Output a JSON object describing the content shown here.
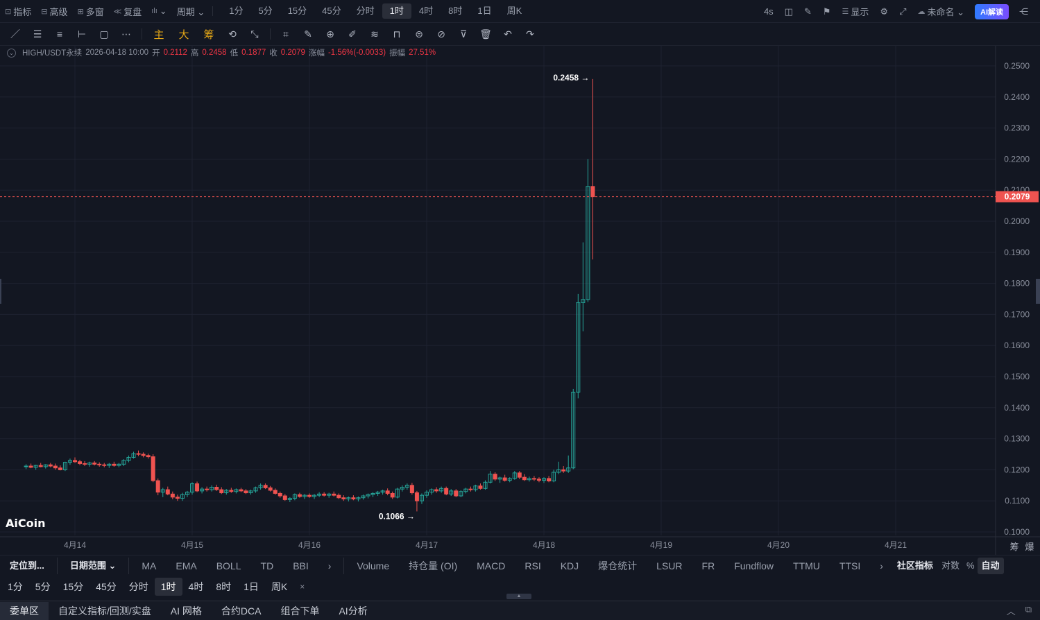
{
  "topbar": {
    "tools": [
      {
        "icon": "indicator-icon",
        "glyph": "⊡",
        "label": "指标"
      },
      {
        "icon": "advanced-icon",
        "glyph": "⊟",
        "label": "高级"
      },
      {
        "icon": "multi-window-icon",
        "glyph": "⊞",
        "label": "多窗"
      },
      {
        "icon": "replay-icon",
        "glyph": "≪",
        "label": "复盘"
      },
      {
        "icon": "chart-type-icon",
        "glyph": "ılı",
        "label": "⌄"
      },
      {
        "icon": "period-icon",
        "glyph": "",
        "label": "周期 ⌄"
      }
    ],
    "periods": [
      "1分",
      "5分",
      "15分",
      "45分",
      "分时",
      "1时",
      "4时",
      "8时",
      "1日",
      "周K"
    ],
    "active_period": "1时",
    "refresh": "4s",
    "display_label": "显示",
    "layout_name": "未命名 ⌄",
    "ai_label": "AI解读"
  },
  "drawbar": {
    "tools": [
      "／",
      "☰",
      "≡",
      "⊢",
      "▢",
      "⋯",
      "主",
      "大",
      "筹",
      "⟲",
      "⤡",
      "⌗",
      "✎",
      "⊕",
      "✐",
      "≋",
      "⊓",
      "⊜",
      "⊘",
      "⊽",
      "🗑",
      "↶",
      "↷"
    ]
  },
  "info": {
    "symbol": "HIGH/USDT永续",
    "datetime": "2026-04-18 10:00",
    "open_label": "开",
    "open": "0.2112",
    "high_label": "高",
    "high": "0.2458",
    "low_label": "低",
    "low": "0.1877",
    "close_label": "收",
    "close": "0.2079",
    "change_label": "涨幅",
    "change": "-1.56%(-0.0033)",
    "amp_label": "振幅",
    "amp": "27.51%"
  },
  "logo": "AiCoin",
  "chart_data": {
    "type": "candlestick",
    "symbol": "HIGH/USDT永续",
    "interval": "1时",
    "ylim": [
      0.1,
      0.25
    ],
    "y_ticks": [
      "0.2500",
      "0.2400",
      "0.2300",
      "0.2200",
      "0.2100",
      "0.2000",
      "0.1900",
      "0.1800",
      "0.1700",
      "0.1600",
      "0.1500",
      "0.1400",
      "0.1300",
      "0.1200",
      "0.1100",
      "0.1000"
    ],
    "x_ticks": [
      "4月14",
      "4月15",
      "4月16",
      "4月17",
      "4月18",
      "4月19",
      "4月20",
      "4月21"
    ],
    "last_price": "0.2079",
    "annotations": [
      {
        "label": "0.2458 →",
        "value": 0.2458
      },
      {
        "label": "0.1066 →",
        "value": 0.1066
      }
    ],
    "colors": {
      "up": "#26a69a",
      "down": "#ef5350",
      "bg": "#131722",
      "grid": "#1e2230",
      "last_line": "#ef5350"
    },
    "candles": [
      [
        0.121,
        0.1218,
        0.1202,
        0.1212
      ],
      [
        0.1212,
        0.122,
        0.1205,
        0.1208
      ],
      [
        0.1208,
        0.1216,
        0.12,
        0.1214
      ],
      [
        0.1214,
        0.1222,
        0.1208,
        0.121
      ],
      [
        0.121,
        0.1218,
        0.1204,
        0.1216
      ],
      [
        0.1216,
        0.1222,
        0.1208,
        0.1212
      ],
      [
        0.1212,
        0.122,
        0.12,
        0.1206
      ],
      [
        0.1206,
        0.1214,
        0.1198,
        0.12
      ],
      [
        0.12,
        0.1226,
        0.1196,
        0.1224
      ],
      [
        0.1224,
        0.1236,
        0.1216,
        0.123
      ],
      [
        0.123,
        0.124,
        0.1222,
        0.1226
      ],
      [
        0.1226,
        0.1232,
        0.1215,
        0.122
      ],
      [
        0.122,
        0.1228,
        0.1212,
        0.1218
      ],
      [
        0.1218,
        0.1226,
        0.121,
        0.1222
      ],
      [
        0.1222,
        0.1228,
        0.1214,
        0.1218
      ],
      [
        0.1218,
        0.1224,
        0.121,
        0.1216
      ],
      [
        0.1216,
        0.1222,
        0.1208,
        0.1214
      ],
      [
        0.1214,
        0.1222,
        0.1206,
        0.1218
      ],
      [
        0.1218,
        0.1226,
        0.121,
        0.1214
      ],
      [
        0.1214,
        0.1222,
        0.1208,
        0.1218
      ],
      [
        0.1218,
        0.1234,
        0.1212,
        0.123
      ],
      [
        0.123,
        0.1246,
        0.1224,
        0.124
      ],
      [
        0.124,
        0.1258,
        0.1236,
        0.1252
      ],
      [
        0.1252,
        0.1262,
        0.1244,
        0.125
      ],
      [
        0.125,
        0.1256,
        0.124,
        0.1246
      ],
      [
        0.1246,
        0.1252,
        0.1236,
        0.1242
      ],
      [
        0.1242,
        0.125,
        0.116,
        0.1165
      ],
      [
        0.1165,
        0.1172,
        0.1118,
        0.1128
      ],
      [
        0.1128,
        0.1142,
        0.1112,
        0.1136
      ],
      [
        0.1136,
        0.1146,
        0.1118,
        0.1122
      ],
      [
        0.1122,
        0.113,
        0.1105,
        0.1112
      ],
      [
        0.1112,
        0.112,
        0.11,
        0.1108
      ],
      [
        0.1108,
        0.1126,
        0.11,
        0.112
      ],
      [
        0.112,
        0.1132,
        0.1112,
        0.1128
      ],
      [
        0.1128,
        0.116,
        0.112,
        0.1155
      ],
      [
        0.1155,
        0.1162,
        0.1128,
        0.1132
      ],
      [
        0.1132,
        0.1144,
        0.1124,
        0.1138
      ],
      [
        0.1138,
        0.1146,
        0.113,
        0.1136
      ],
      [
        0.1136,
        0.115,
        0.113,
        0.1144
      ],
      [
        0.1144,
        0.1152,
        0.1132,
        0.1136
      ],
      [
        0.1136,
        0.1144,
        0.1122,
        0.1126
      ],
      [
        0.1126,
        0.1138,
        0.112,
        0.1134
      ],
      [
        0.1134,
        0.1142,
        0.1126,
        0.113
      ],
      [
        0.113,
        0.114,
        0.1124,
        0.1136
      ],
      [
        0.1136,
        0.1142,
        0.1128,
        0.1132
      ],
      [
        0.1132,
        0.1138,
        0.1122,
        0.1126
      ],
      [
        0.1126,
        0.1136,
        0.112,
        0.1132
      ],
      [
        0.1132,
        0.1146,
        0.1126,
        0.1142
      ],
      [
        0.1142,
        0.1156,
        0.1136,
        0.115
      ],
      [
        0.115,
        0.1156,
        0.1138,
        0.1142
      ],
      [
        0.1142,
        0.1148,
        0.113,
        0.1134
      ],
      [
        0.1134,
        0.114,
        0.112,
        0.1124
      ],
      [
        0.1124,
        0.113,
        0.111,
        0.1116
      ],
      [
        0.1116,
        0.1122,
        0.11,
        0.1104
      ],
      [
        0.1104,
        0.1112,
        0.1096,
        0.1108
      ],
      [
        0.1108,
        0.1124,
        0.1102,
        0.112
      ],
      [
        0.112,
        0.1126,
        0.111,
        0.1114
      ],
      [
        0.1114,
        0.1122,
        0.1106,
        0.1118
      ],
      [
        0.1118,
        0.1124,
        0.111,
        0.1114
      ],
      [
        0.1114,
        0.1122,
        0.1106,
        0.1118
      ],
      [
        0.1118,
        0.1128,
        0.1112,
        0.1122
      ],
      [
        0.1122,
        0.1128,
        0.1114,
        0.1118
      ],
      [
        0.1118,
        0.1126,
        0.111,
        0.1122
      ],
      [
        0.1122,
        0.113,
        0.1114,
        0.1118
      ],
      [
        0.1118,
        0.1124,
        0.1106,
        0.111
      ],
      [
        0.111,
        0.1118,
        0.11,
        0.1106
      ],
      [
        0.1106,
        0.1114,
        0.1098,
        0.111
      ],
      [
        0.111,
        0.1118,
        0.1102,
        0.1106
      ],
      [
        0.1106,
        0.1114,
        0.1098,
        0.111
      ],
      [
        0.111,
        0.112,
        0.1104,
        0.1116
      ],
      [
        0.1116,
        0.1124,
        0.1108,
        0.112
      ],
      [
        0.112,
        0.1128,
        0.1112,
        0.1124
      ],
      [
        0.1124,
        0.1132,
        0.1116,
        0.1128
      ],
      [
        0.1128,
        0.1136,
        0.112,
        0.1132
      ],
      [
        0.1132,
        0.114,
        0.1118,
        0.1124
      ],
      [
        0.1124,
        0.113,
        0.1106,
        0.1112
      ],
      [
        0.1112,
        0.1142,
        0.1108,
        0.1138
      ],
      [
        0.1138,
        0.115,
        0.113,
        0.1144
      ],
      [
        0.1144,
        0.1156,
        0.1136,
        0.115
      ],
      [
        0.115,
        0.1158,
        0.112,
        0.1126
      ],
      [
        0.1126,
        0.1132,
        0.1066,
        0.11
      ],
      [
        0.11,
        0.1124,
        0.109,
        0.1118
      ],
      [
        0.1118,
        0.1134,
        0.111,
        0.1128
      ],
      [
        0.1128,
        0.114,
        0.112,
        0.1136
      ],
      [
        0.1136,
        0.1144,
        0.1126,
        0.1132
      ],
      [
        0.1132,
        0.1146,
        0.1126,
        0.114
      ],
      [
        0.114,
        0.1146,
        0.1118,
        0.1122
      ],
      [
        0.1122,
        0.1138,
        0.1116,
        0.1132
      ],
      [
        0.1132,
        0.1138,
        0.1112,
        0.1116
      ],
      [
        0.1116,
        0.1134,
        0.1112,
        0.113
      ],
      [
        0.113,
        0.1142,
        0.1124,
        0.1138
      ],
      [
        0.1138,
        0.1146,
        0.113,
        0.1136
      ],
      [
        0.1136,
        0.1152,
        0.113,
        0.1148
      ],
      [
        0.1148,
        0.1156,
        0.1136,
        0.114
      ],
      [
        0.114,
        0.1166,
        0.1136,
        0.116
      ],
      [
        0.116,
        0.1196,
        0.1156,
        0.1186
      ],
      [
        0.1186,
        0.1192,
        0.1164,
        0.117
      ],
      [
        0.117,
        0.1178,
        0.1158,
        0.1174
      ],
      [
        0.1174,
        0.1184,
        0.1162,
        0.1166
      ],
      [
        0.1166,
        0.1176,
        0.116,
        0.1172
      ],
      [
        0.1172,
        0.1196,
        0.1168,
        0.119
      ],
      [
        0.119,
        0.1196,
        0.117,
        0.1176
      ],
      [
        0.1176,
        0.1186,
        0.1164,
        0.1168
      ],
      [
        0.1168,
        0.1178,
        0.1162,
        0.1172
      ],
      [
        0.1172,
        0.118,
        0.1164,
        0.117
      ],
      [
        0.117,
        0.1176,
        0.116,
        0.1166
      ],
      [
        0.1166,
        0.1176,
        0.1158,
        0.1172
      ],
      [
        0.1172,
        0.118,
        0.116,
        0.1164
      ],
      [
        0.1164,
        0.12,
        0.116,
        0.1192
      ],
      [
        0.1192,
        0.1226,
        0.1186,
        0.12
      ],
      [
        0.12,
        0.1212,
        0.119,
        0.1196
      ],
      [
        0.1196,
        0.1246,
        0.119,
        0.1206
      ],
      [
        0.1206,
        0.146,
        0.1202,
        0.145
      ],
      [
        0.145,
        0.1766,
        0.143,
        0.1738
      ],
      [
        0.1738,
        0.1932,
        0.1646,
        0.1748
      ],
      [
        0.1748,
        0.22,
        0.174,
        0.2112
      ],
      [
        0.2112,
        0.2458,
        0.1877,
        0.2079
      ]
    ]
  },
  "bottom_bar": {
    "locate": "定位到...",
    "date_range": "日期范围 ⌄",
    "main_indicators": [
      "MA",
      "EMA",
      "BOLL",
      "TD",
      "BBI"
    ],
    "more": "›",
    "sub_indicators": [
      "Volume",
      "持仓量 (OI)",
      "MACD",
      "RSI",
      "KDJ",
      "爆仓统计",
      "LSUR",
      "FR",
      "Fundflow",
      "TTMU",
      "TTSI"
    ],
    "community": "社区指标",
    "log_label": "对数",
    "pct_label": "%",
    "auto_label": "自动"
  },
  "period_bar": {
    "periods": [
      "1分",
      "5分",
      "15分",
      "45分",
      "分时",
      "1时",
      "4时",
      "8时",
      "1日",
      "周K"
    ],
    "active": "1时",
    "close": "×"
  },
  "panel_tabs": [
    "委单区",
    "自定义指标/回测/实盘",
    "AI 网格",
    "合约DCA",
    "组合下单",
    "AI分析"
  ],
  "right_axis_labels": [
    "筹",
    "爆"
  ]
}
